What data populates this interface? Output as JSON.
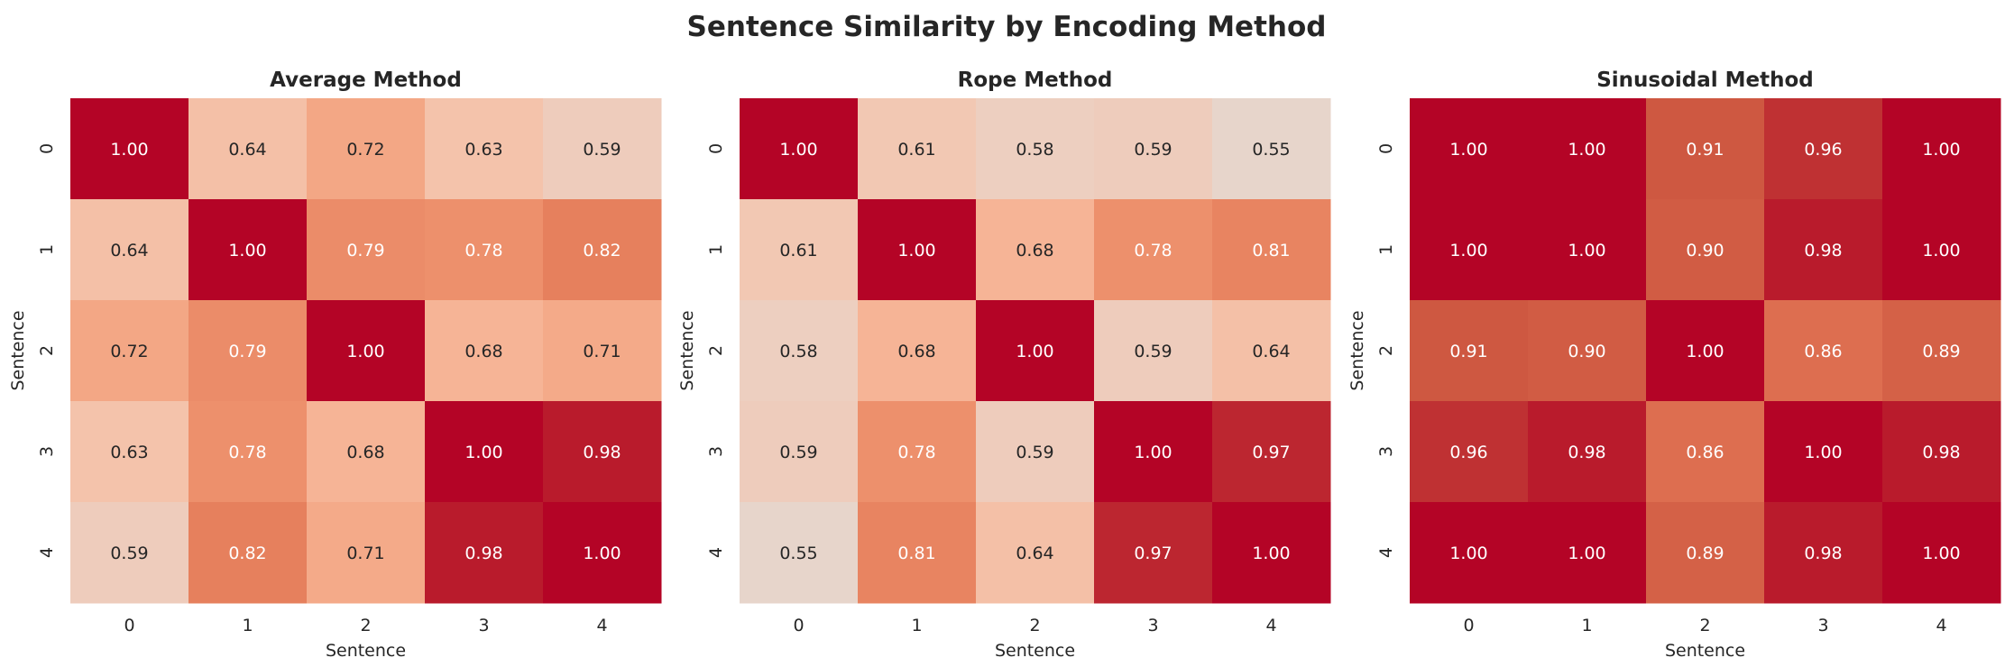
{
  "chart_data": [
    {
      "type": "heatmap",
      "title": "Average Method",
      "xlabel": "Sentence",
      "ylabel": "Sentence",
      "x_ticks": [
        "0",
        "1",
        "2",
        "3",
        "4"
      ],
      "y_ticks": [
        "0",
        "1",
        "2",
        "3",
        "4"
      ],
      "colormap": "coolwarm",
      "vlim": [
        0,
        1
      ],
      "colorbar": false,
      "values": [
        [
          1.0,
          0.64,
          0.72,
          0.63,
          0.59
        ],
        [
          0.64,
          1.0,
          0.79,
          0.78,
          0.82
        ],
        [
          0.72,
          0.79,
          1.0,
          0.68,
          0.71
        ],
        [
          0.63,
          0.78,
          0.68,
          1.0,
          0.98
        ],
        [
          0.59,
          0.82,
          0.71,
          0.98,
          1.0
        ]
      ]
    },
    {
      "type": "heatmap",
      "title": "Rope Method",
      "xlabel": "Sentence",
      "ylabel": "Sentence",
      "x_ticks": [
        "0",
        "1",
        "2",
        "3",
        "4"
      ],
      "y_ticks": [
        "0",
        "1",
        "2",
        "3",
        "4"
      ],
      "colormap": "coolwarm",
      "vlim": [
        0,
        1
      ],
      "colorbar": false,
      "values": [
        [
          1.0,
          0.61,
          0.58,
          0.59,
          0.55
        ],
        [
          0.61,
          1.0,
          0.68,
          0.78,
          0.81
        ],
        [
          0.58,
          0.68,
          1.0,
          0.59,
          0.64
        ],
        [
          0.59,
          0.78,
          0.59,
          1.0,
          0.97
        ],
        [
          0.55,
          0.81,
          0.64,
          0.97,
          1.0
        ]
      ]
    },
    {
      "type": "heatmap",
      "title": "Sinusoidal Method",
      "xlabel": "Sentence",
      "ylabel": "Sentence",
      "x_ticks": [
        "0",
        "1",
        "2",
        "3",
        "4"
      ],
      "y_ticks": [
        "0",
        "1",
        "2",
        "3",
        "4"
      ],
      "colormap": "coolwarm",
      "vlim": [
        0,
        1
      ],
      "colorbar": false,
      "values": [
        [
          1.0,
          1.0,
          0.91,
          0.96,
          1.0
        ],
        [
          1.0,
          1.0,
          0.9,
          0.98,
          1.0
        ],
        [
          0.91,
          0.9,
          1.0,
          0.86,
          0.89
        ],
        [
          0.96,
          0.98,
          0.86,
          1.0,
          0.98
        ],
        [
          1.0,
          1.0,
          0.89,
          0.98,
          1.0
        ]
      ]
    }
  ],
  "suptitle": "Sentence Similarity by Encoding Method"
}
